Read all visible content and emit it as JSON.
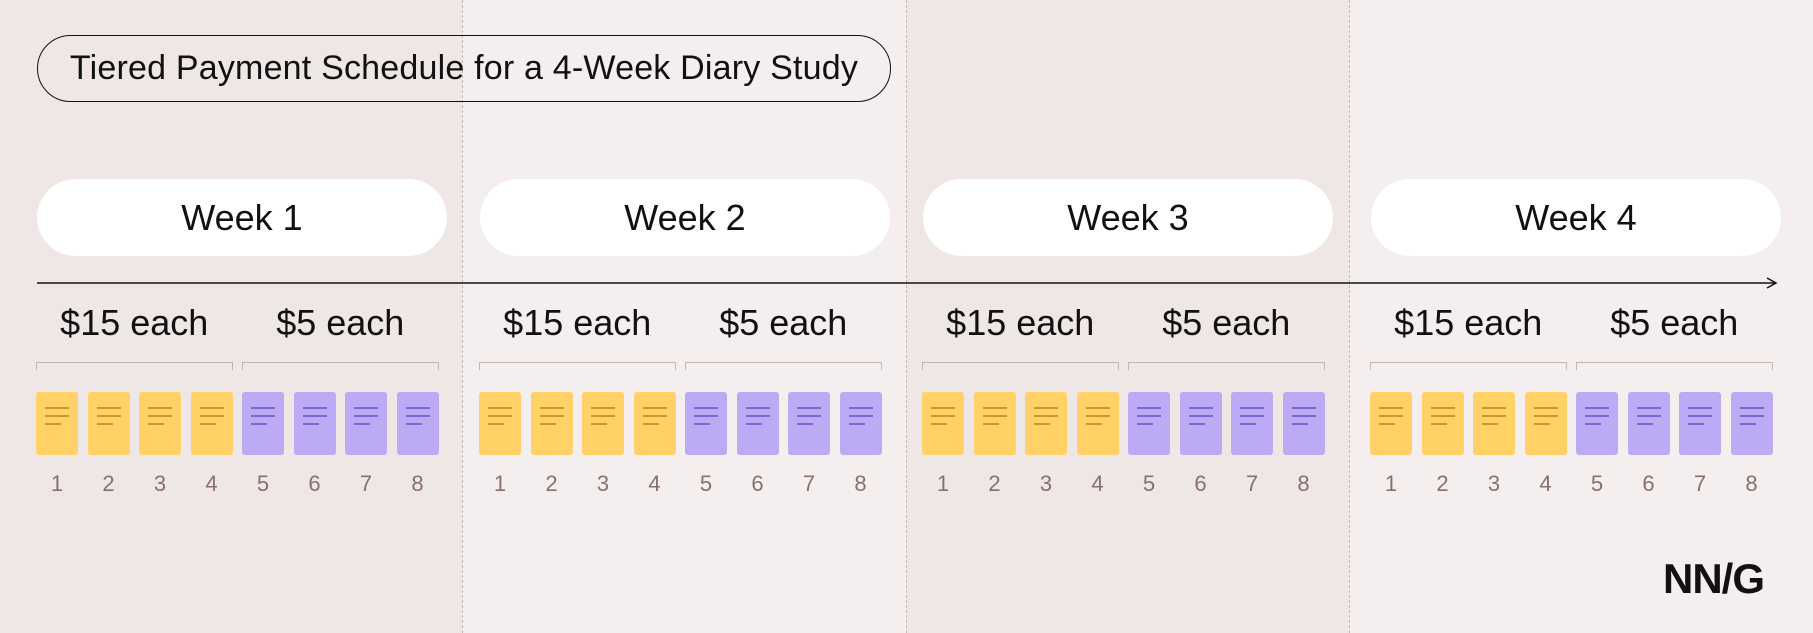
{
  "title": "Tiered Payment Schedule for a 4-Week Diary Study",
  "logo": "NN/G",
  "colors": {
    "background_shade_a": "#efe6e6",
    "background_shade_b": "#f4eeee",
    "high_payment_entry": "#ffd166",
    "low_payment_entry": "#bdaaf4",
    "entry_number_text": "#8a6f6f"
  },
  "weeks": [
    {
      "label": "Week 1",
      "tiers": [
        {
          "label": "$15 each",
          "color_key": "high_payment_entry",
          "entries": [
            "1",
            "2",
            "3",
            "4"
          ]
        },
        {
          "label": "$5 each",
          "color_key": "low_payment_entry",
          "entries": [
            "5",
            "6",
            "7",
            "8"
          ]
        }
      ]
    },
    {
      "label": "Week 2",
      "tiers": [
        {
          "label": "$15 each",
          "color_key": "high_payment_entry",
          "entries": [
            "1",
            "2",
            "3",
            "4"
          ]
        },
        {
          "label": "$5 each",
          "color_key": "low_payment_entry",
          "entries": [
            "5",
            "6",
            "7",
            "8"
          ]
        }
      ]
    },
    {
      "label": "Week 3",
      "tiers": [
        {
          "label": "$15 each",
          "color_key": "high_payment_entry",
          "entries": [
            "1",
            "2",
            "3",
            "4"
          ]
        },
        {
          "label": "$5 each",
          "color_key": "low_payment_entry",
          "entries": [
            "5",
            "6",
            "7",
            "8"
          ]
        }
      ]
    },
    {
      "label": "Week 4",
      "tiers": [
        {
          "label": "$15 each",
          "color_key": "high_payment_entry",
          "entries": [
            "1",
            "2",
            "3",
            "4"
          ]
        },
        {
          "label": "$5 each",
          "color_key": "low_payment_entry",
          "entries": [
            "5",
            "6",
            "7",
            "8"
          ]
        }
      ]
    }
  ]
}
